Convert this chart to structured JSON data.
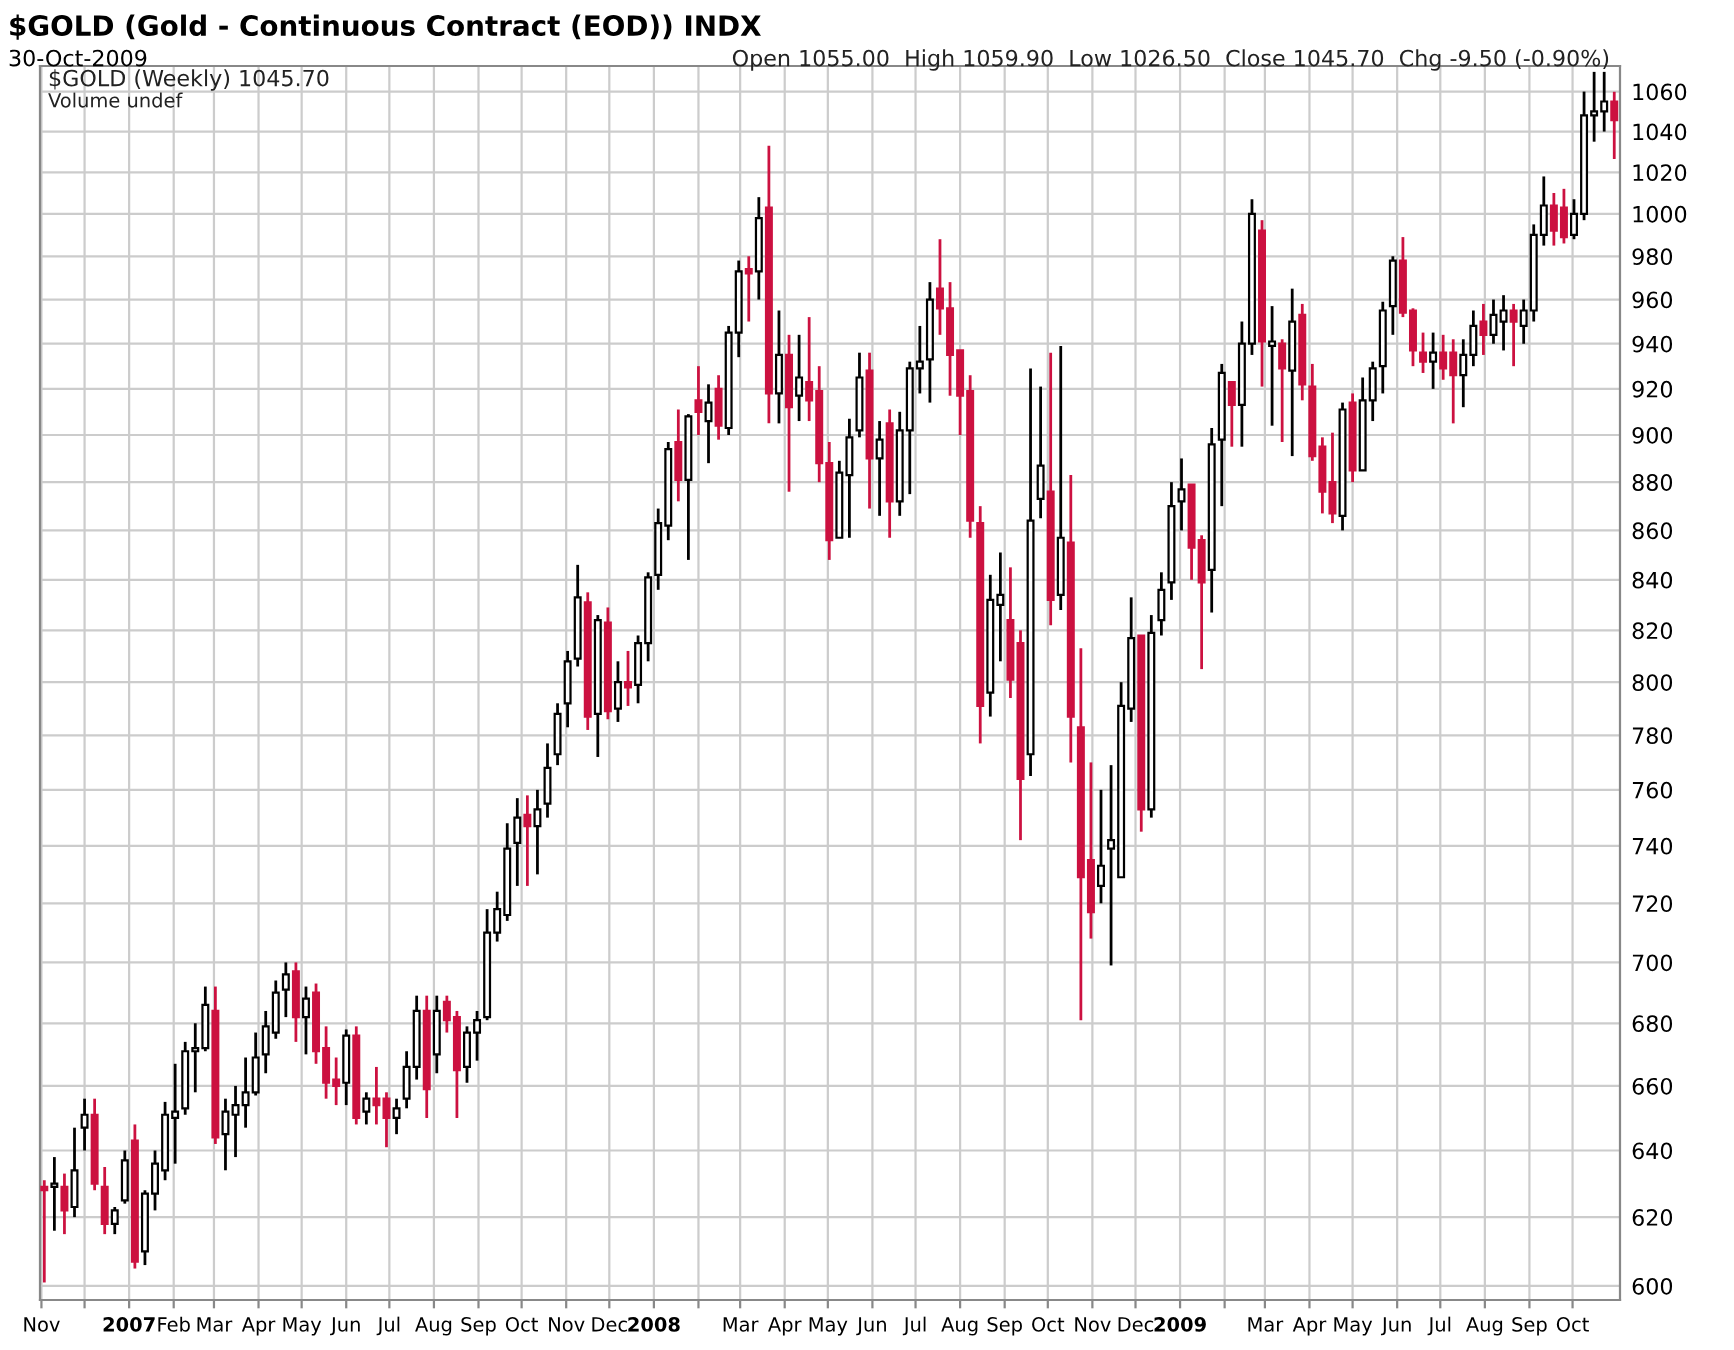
{
  "chart_data": {
    "type": "candlestick",
    "title": "$GOLD (Gold - Continuous Contract (EOD)) INDX",
    "subtitle": "30-Oct-2009",
    "annotations": [
      "Open 1055.00  High 1059.90  Low 1026.50  Close 1045.70  Chg -9.50 (-0.90%)",
      "$GOLD (Weekly) 1045.70",
      "Volume undef"
    ],
    "colors": [
      "#cc1140",
      "#ffffff",
      "#cc1140",
      "#ffffff",
      "#ffffff",
      "#cc1140",
      "#cc1140",
      "#ffffff",
      "#ffffff",
      "#cc1140",
      "#ffffff",
      "#ffffff",
      "#ffffff",
      "#ffffff",
      "#ffffff",
      "#ffffff",
      "#ffffff",
      "#cc1140",
      "#ffffff",
      "#ffffff",
      "#ffffff",
      "#ffffff",
      "#ffffff",
      "#ffffff",
      "#ffffff",
      "#cc1140",
      "#ffffff",
      "#cc1140",
      "#cc1140",
      "#cc1140",
      "#ffffff",
      "#cc1140",
      "#ffffff",
      "#cc1140",
      "#cc1140",
      "#ffffff",
      "#ffffff",
      "#ffffff",
      "#cc1140",
      "#ffffff",
      "#cc1140",
      "#cc1140",
      "#ffffff",
      "#ffffff",
      "#ffffff",
      "#ffffff",
      "#ffffff",
      "#ffffff",
      "#cc1140",
      "#ffffff",
      "#ffffff",
      "#ffffff",
      "#ffffff",
      "#ffffff",
      "#cc1140",
      "#ffffff",
      "#cc1140",
      "#ffffff",
      "#cc1140",
      "#ffffff",
      "#ffffff",
      "#ffffff",
      "#ffffff",
      "#cc1140",
      "#ffffff",
      "#cc1140",
      "#ffffff",
      "#cc1140",
      "#ffffff",
      "#ffffff",
      "#cc1140",
      "#ffffff",
      "#cc1140",
      "#ffffff",
      "#cc1140",
      "#ffffff",
      "#cc1140",
      "#cc1140",
      "#cc1140",
      "#ffffff",
      "#ffffff",
      "#ffffff",
      "#cc1140",
      "#ffffff",
      "#cc1140",
      "#ffffff",
      "#ffffff",
      "#ffffff",
      "#ffffff",
      "#cc1140",
      "#cc1140",
      "#cc1140",
      "#cc1140",
      "#cc1140",
      "#ffffff",
      "#ffffff",
      "#cc1140",
      "#cc1140",
      "#ffffff",
      "#ffffff",
      "#cc1140",
      "#ffffff",
      "#cc1140",
      "#cc1140",
      "#cc1140",
      "#ffffff",
      "#ffffff",
      "#ffffff",
      "#ffffff",
      "#cc1140",
      "#ffffff",
      "#ffffff",
      "#ffffff",
      "#ffffff",
      "#cc1140",
      "#cc1140",
      "#ffffff",
      "#ffffff",
      "#cc1140",
      "#ffffff",
      "#ffffff",
      "#cc1140",
      "#ffffff",
      "#cc1140",
      "#ffffff",
      "#cc1140",
      "#cc1140",
      "#cc1140",
      "#cc1140",
      "#ffffff",
      "#cc1140",
      "#ffffff",
      "#ffffff",
      "#ffffff",
      "#ffffff",
      "#cc1140",
      "#cc1140",
      "#cc1140",
      "#ffffff",
      "#cc1140",
      "#cc1140",
      "#ffffff",
      "#ffffff",
      "#cc1140",
      "#ffffff",
      "#ffffff",
      "#cc1140",
      "#ffffff",
      "#ffffff",
      "#ffffff",
      "#cc1140",
      "#cc1140",
      "#ffffff",
      "#ffffff",
      "#ffffff",
      "#ffffff",
      "#cc1140"
    ],
    "x": [
      "2006-11-03",
      "2006-11-10",
      "2006-11-17",
      "2006-11-24",
      "2006-12-01",
      "2006-12-08",
      "2006-12-15",
      "2006-12-22",
      "2006-12-29",
      "2007-01-05",
      "2007-01-12",
      "2007-01-19",
      "2007-01-26",
      "2007-02-02",
      "2007-02-09",
      "2007-02-16",
      "2007-02-23",
      "2007-03-02",
      "2007-03-09",
      "2007-03-16",
      "2007-03-23",
      "2007-03-30",
      "2007-04-06",
      "2007-04-13",
      "2007-04-20",
      "2007-04-27",
      "2007-05-04",
      "2007-05-11",
      "2007-05-18",
      "2007-05-25",
      "2007-06-01",
      "2007-06-08",
      "2007-06-15",
      "2007-06-22",
      "2007-06-29",
      "2007-07-06",
      "2007-07-13",
      "2007-07-20",
      "2007-07-27",
      "2007-08-03",
      "2007-08-10",
      "2007-08-17",
      "2007-08-24",
      "2007-08-31",
      "2007-09-07",
      "2007-09-14",
      "2007-09-21",
      "2007-09-28",
      "2007-10-05",
      "2007-10-12",
      "2007-10-19",
      "2007-10-26",
      "2007-11-02",
      "2007-11-09",
      "2007-11-16",
      "2007-11-23",
      "2007-11-30",
      "2007-12-07",
      "2007-12-14",
      "2007-12-21",
      "2007-12-28",
      "2008-01-04",
      "2008-01-11",
      "2008-01-18",
      "2008-01-25",
      "2008-02-01",
      "2008-02-08",
      "2008-02-15",
      "2008-02-22",
      "2008-02-29",
      "2008-03-07",
      "2008-03-14",
      "2008-03-21",
      "2008-03-28",
      "2008-04-04",
      "2008-04-11",
      "2008-04-18",
      "2008-04-25",
      "2008-05-02",
      "2008-05-09",
      "2008-05-16",
      "2008-05-23",
      "2008-05-30",
      "2008-06-06",
      "2008-06-13",
      "2008-06-20",
      "2008-06-27",
      "2008-07-04",
      "2008-07-11",
      "2008-07-18",
      "2008-07-25",
      "2008-08-01",
      "2008-08-08",
      "2008-08-15",
      "2008-08-22",
      "2008-08-29",
      "2008-09-05",
      "2008-09-12",
      "2008-09-19",
      "2008-09-26",
      "2008-10-03",
      "2008-10-10",
      "2008-10-17",
      "2008-10-24",
      "2008-10-31",
      "2008-11-07",
      "2008-11-14",
      "2008-11-21",
      "2008-11-28",
      "2008-12-05",
      "2008-12-12",
      "2008-12-19",
      "2008-12-26",
      "2009-01-02",
      "2009-01-09",
      "2009-01-16",
      "2009-01-23",
      "2009-01-30",
      "2009-02-06",
      "2009-02-13",
      "2009-02-20",
      "2009-02-27",
      "2009-03-06",
      "2009-03-13",
      "2009-03-20",
      "2009-03-27",
      "2009-04-03",
      "2009-04-10",
      "2009-04-17",
      "2009-04-24",
      "2009-05-01",
      "2009-05-08",
      "2009-05-15",
      "2009-05-22",
      "2009-05-29",
      "2009-06-05",
      "2009-06-12",
      "2009-06-19",
      "2009-06-26",
      "2009-07-03",
      "2009-07-10",
      "2009-07-17",
      "2009-07-24",
      "2009-07-31",
      "2009-08-07",
      "2009-08-14",
      "2009-08-21",
      "2009-08-28",
      "2009-09-04",
      "2009-09-11",
      "2009-09-18",
      "2009-09-25",
      "2009-10-02",
      "2009-10-09",
      "2009-10-16",
      "2009-10-23",
      "2009-10-30"
    ],
    "ohlc": [
      [
        629,
        631,
        601,
        628
      ],
      [
        629,
        638,
        616,
        630
      ],
      [
        629,
        633,
        615,
        622
      ],
      [
        623,
        647,
        620,
        634
      ],
      [
        647,
        656,
        640,
        651
      ],
      [
        651,
        656,
        628,
        630
      ],
      [
        629,
        635,
        615,
        618
      ],
      [
        618,
        623,
        615,
        622
      ],
      [
        625,
        640,
        624,
        637
      ],
      [
        643,
        648,
        605,
        607
      ],
      [
        610,
        628,
        606,
        627
      ],
      [
        627,
        640,
        622,
        636
      ],
      [
        634,
        655,
        631,
        651
      ],
      [
        650,
        667,
        636,
        652
      ],
      [
        653,
        674,
        651,
        671
      ],
      [
        671,
        680,
        658,
        672
      ],
      [
        672,
        692,
        671,
        686
      ],
      [
        684,
        692,
        642,
        644
      ],
      [
        645,
        656,
        634,
        652
      ],
      [
        651,
        660,
        638,
        654
      ],
      [
        654,
        669,
        647,
        658
      ],
      [
        658,
        677,
        657,
        669
      ],
      [
        670,
        684,
        664,
        679
      ],
      [
        677,
        694,
        675,
        690
      ],
      [
        691,
        700,
        682,
        696
      ],
      [
        697,
        700,
        674,
        682
      ],
      [
        682,
        692,
        670,
        688
      ],
      [
        690,
        693,
        667,
        671
      ],
      [
        672,
        679,
        656,
        661
      ],
      [
        662,
        669,
        654,
        660
      ],
      [
        661,
        678,
        654,
        676
      ],
      [
        676,
        679,
        648,
        650
      ],
      [
        652,
        658,
        648,
        656
      ],
      [
        656,
        666,
        648,
        654
      ],
      [
        656,
        658,
        641,
        650
      ],
      [
        650,
        656,
        645,
        653
      ],
      [
        656,
        671,
        653,
        666
      ],
      [
        666,
        689,
        662,
        684
      ],
      [
        684,
        689,
        650,
        659
      ],
      [
        670,
        689,
        664,
        684
      ],
      [
        687,
        689,
        677,
        681
      ],
      [
        682,
        684,
        650,
        665
      ],
      [
        666,
        679,
        661,
        677
      ],
      [
        677,
        684,
        668,
        681
      ],
      [
        682,
        718,
        681,
        710
      ],
      [
        710,
        724,
        707,
        718
      ],
      [
        716,
        748,
        714,
        739
      ],
      [
        741,
        757,
        726,
        750
      ],
      [
        751,
        758,
        726,
        747
      ],
      [
        747,
        760,
        730,
        753
      ],
      [
        755,
        777,
        750,
        768
      ],
      [
        773,
        792,
        769,
        788
      ],
      [
        792,
        812,
        783,
        808
      ],
      [
        809,
        846,
        806,
        833
      ],
      [
        831,
        835,
        782,
        787
      ],
      [
        788,
        826,
        772,
        824
      ],
      [
        823,
        829,
        786,
        789
      ],
      [
        790,
        808,
        785,
        800
      ],
      [
        800,
        812,
        791,
        798
      ],
      [
        799,
        818,
        792,
        815
      ],
      [
        815,
        843,
        808,
        841
      ],
      [
        842,
        869,
        836,
        863
      ],
      [
        862,
        897,
        856,
        894
      ],
      [
        897,
        911,
        872,
        881
      ],
      [
        881,
        909,
        848,
        908
      ],
      [
        915,
        930,
        900,
        910
      ],
      [
        906,
        922,
        888,
        914
      ],
      [
        920,
        926,
        898,
        904
      ],
      [
        903,
        948,
        900,
        945
      ],
      [
        945,
        978,
        934,
        973
      ],
      [
        974,
        980,
        950,
        972
      ],
      [
        973,
        1008,
        960,
        998
      ],
      [
        1003,
        1033,
        905,
        918
      ],
      [
        918,
        955,
        905,
        935
      ],
      [
        935,
        944,
        876,
        912
      ],
      [
        917,
        944,
        906,
        925
      ],
      [
        923,
        952,
        906,
        915
      ],
      [
        919,
        930,
        880,
        888
      ],
      [
        888,
        897,
        848,
        856
      ],
      [
        857,
        889,
        857,
        884
      ],
      [
        883,
        907,
        857,
        899
      ],
      [
        902,
        936,
        899,
        925
      ],
      [
        928,
        936,
        869,
        890
      ],
      [
        890,
        906,
        866,
        898
      ],
      [
        905,
        911,
        857,
        872
      ],
      [
        872,
        910,
        866,
        902
      ],
      [
        902,
        932,
        875,
        929
      ],
      [
        929,
        948,
        918,
        932
      ],
      [
        933,
        968,
        914,
        960
      ],
      [
        965,
        988,
        944,
        956
      ],
      [
        956,
        968,
        917,
        935
      ],
      [
        937,
        937,
        900,
        917
      ],
      [
        919,
        926,
        857,
        864
      ],
      [
        863,
        870,
        777,
        791
      ],
      [
        796,
        842,
        787,
        832
      ],
      [
        830,
        851,
        808,
        834
      ],
      [
        824,
        845,
        794,
        801
      ],
      [
        815,
        820,
        742,
        764
      ],
      [
        773,
        929,
        765,
        864
      ],
      [
        873,
        921,
        865,
        887
      ],
      [
        876,
        936,
        822,
        832
      ],
      [
        834,
        939,
        828,
        857
      ],
      [
        855,
        883,
        770,
        787
      ],
      [
        783,
        813,
        681,
        729
      ],
      [
        735,
        770,
        708,
        717
      ],
      [
        726,
        760,
        720,
        733
      ],
      [
        739,
        769,
        699,
        742
      ],
      [
        729,
        800,
        729,
        791
      ],
      [
        790,
        833,
        785,
        817
      ],
      [
        818,
        818,
        745,
        753
      ],
      [
        753,
        826,
        750,
        819
      ],
      [
        824,
        843,
        818,
        836
      ],
      [
        839,
        880,
        832,
        870
      ],
      [
        872,
        890,
        860,
        877
      ],
      [
        879,
        879,
        840,
        853
      ],
      [
        856,
        858,
        805,
        839
      ],
      [
        844,
        903,
        827,
        896
      ],
      [
        898,
        931,
        870,
        927
      ],
      [
        923,
        923,
        895,
        913
      ],
      [
        913,
        950,
        895,
        940
      ],
      [
        940,
        1007,
        935,
        1000
      ],
      [
        992,
        997,
        921,
        941
      ],
      [
        939,
        957,
        904,
        941
      ],
      [
        940,
        942,
        897,
        929
      ],
      [
        928,
        965,
        891,
        950
      ],
      [
        953,
        958,
        915,
        922
      ],
      [
        921,
        931,
        889,
        891
      ],
      [
        895,
        899,
        867,
        876
      ],
      [
        880,
        901,
        863,
        867
      ],
      [
        866,
        914,
        860,
        911
      ],
      [
        914,
        918,
        880,
        885
      ],
      [
        885,
        925,
        885,
        915
      ],
      [
        915,
        932,
        906,
        929
      ],
      [
        930,
        959,
        918,
        955
      ],
      [
        957,
        980,
        944,
        978
      ],
      [
        978,
        989,
        952,
        954
      ],
      [
        955,
        956,
        930,
        937
      ],
      [
        936,
        945,
        927,
        932
      ],
      [
        932,
        945,
        920,
        936
      ],
      [
        936,
        944,
        924,
        929
      ],
      [
        936,
        942,
        905,
        926
      ],
      [
        926,
        942,
        912,
        935
      ],
      [
        935,
        955,
        930,
        948
      ],
      [
        950,
        958,
        935,
        944
      ],
      [
        944,
        960,
        940,
        953
      ],
      [
        950,
        962,
        937,
        955
      ],
      [
        955,
        958,
        930,
        950
      ],
      [
        948,
        960,
        940,
        955
      ],
      [
        955,
        995,
        950,
        990
      ],
      [
        990,
        1018,
        985,
        1004
      ],
      [
        1004,
        1010,
        985,
        992
      ],
      [
        1003,
        1012,
        986,
        989
      ],
      [
        990,
        1007,
        988,
        1000
      ],
      [
        1000,
        1060,
        997,
        1048
      ],
      [
        1048,
        1070,
        1035,
        1050
      ],
      [
        1050,
        1070,
        1040,
        1055
      ],
      [
        1055.0,
        1059.9,
        1026.5,
        1045.7
      ]
    ],
    "log": true,
    "ylim": [
      596,
      1073
    ],
    "yticks": [
      600,
      620,
      640,
      660,
      680,
      700,
      720,
      740,
      760,
      780,
      800,
      820,
      840,
      860,
      880,
      900,
      920,
      940,
      960,
      980,
      1000,
      1020,
      1040,
      1060
    ],
    "xlim": [
      "2006-10-31",
      "2009-11-03"
    ],
    "xticks": [
      {
        "value": "2006-11-01",
        "label": "Nov"
      },
      {
        "value": "2006-12-01",
        "label": null
      },
      {
        "value": "2007-01-01",
        "label": "2007"
      },
      {
        "value": "2007-02-01",
        "label": "Feb"
      },
      {
        "value": "2007-03-01",
        "label": "Mar"
      },
      {
        "value": "2007-04-01",
        "label": "Apr"
      },
      {
        "value": "2007-05-01",
        "label": "May"
      },
      {
        "value": "2007-06-01",
        "label": "Jun"
      },
      {
        "value": "2007-07-01",
        "label": "Jul"
      },
      {
        "value": "2007-08-01",
        "label": "Aug"
      },
      {
        "value": "2007-09-01",
        "label": "Sep"
      },
      {
        "value": "2007-10-01",
        "label": "Oct"
      },
      {
        "value": "2007-11-01",
        "label": "Nov"
      },
      {
        "value": "2007-12-01",
        "label": "Dec"
      },
      {
        "value": "2008-01-01",
        "label": "2008"
      },
      {
        "value": "2008-02-01",
        "label": null
      },
      {
        "value": "2008-03-01",
        "label": "Mar"
      },
      {
        "value": "2008-04-01",
        "label": "Apr"
      },
      {
        "value": "2008-05-01",
        "label": "May"
      },
      {
        "value": "2008-06-01",
        "label": "Jun"
      },
      {
        "value": "2008-07-01",
        "label": "Jul"
      },
      {
        "value": "2008-08-01",
        "label": "Aug"
      },
      {
        "value": "2008-09-01",
        "label": "Sep"
      },
      {
        "value": "2008-10-01",
        "label": "Oct"
      },
      {
        "value": "2008-11-01",
        "label": "Nov"
      },
      {
        "value": "2008-12-01",
        "label": "Dec"
      },
      {
        "value": "2009-01-01",
        "label": "2009"
      },
      {
        "value": "2009-02-01",
        "label": null
      },
      {
        "value": "2009-03-01",
        "label": "Mar"
      },
      {
        "value": "2009-04-01",
        "label": "Apr"
      },
      {
        "value": "2009-05-01",
        "label": "May"
      },
      {
        "value": "2009-06-01",
        "label": "Jun"
      },
      {
        "value": "2009-07-01",
        "label": "Jul"
      },
      {
        "value": "2009-08-01",
        "label": "Aug"
      },
      {
        "value": "2009-09-01",
        "label": "Sep"
      },
      {
        "value": "2009-10-01",
        "label": "Oct"
      }
    ],
    "grid": true
  }
}
